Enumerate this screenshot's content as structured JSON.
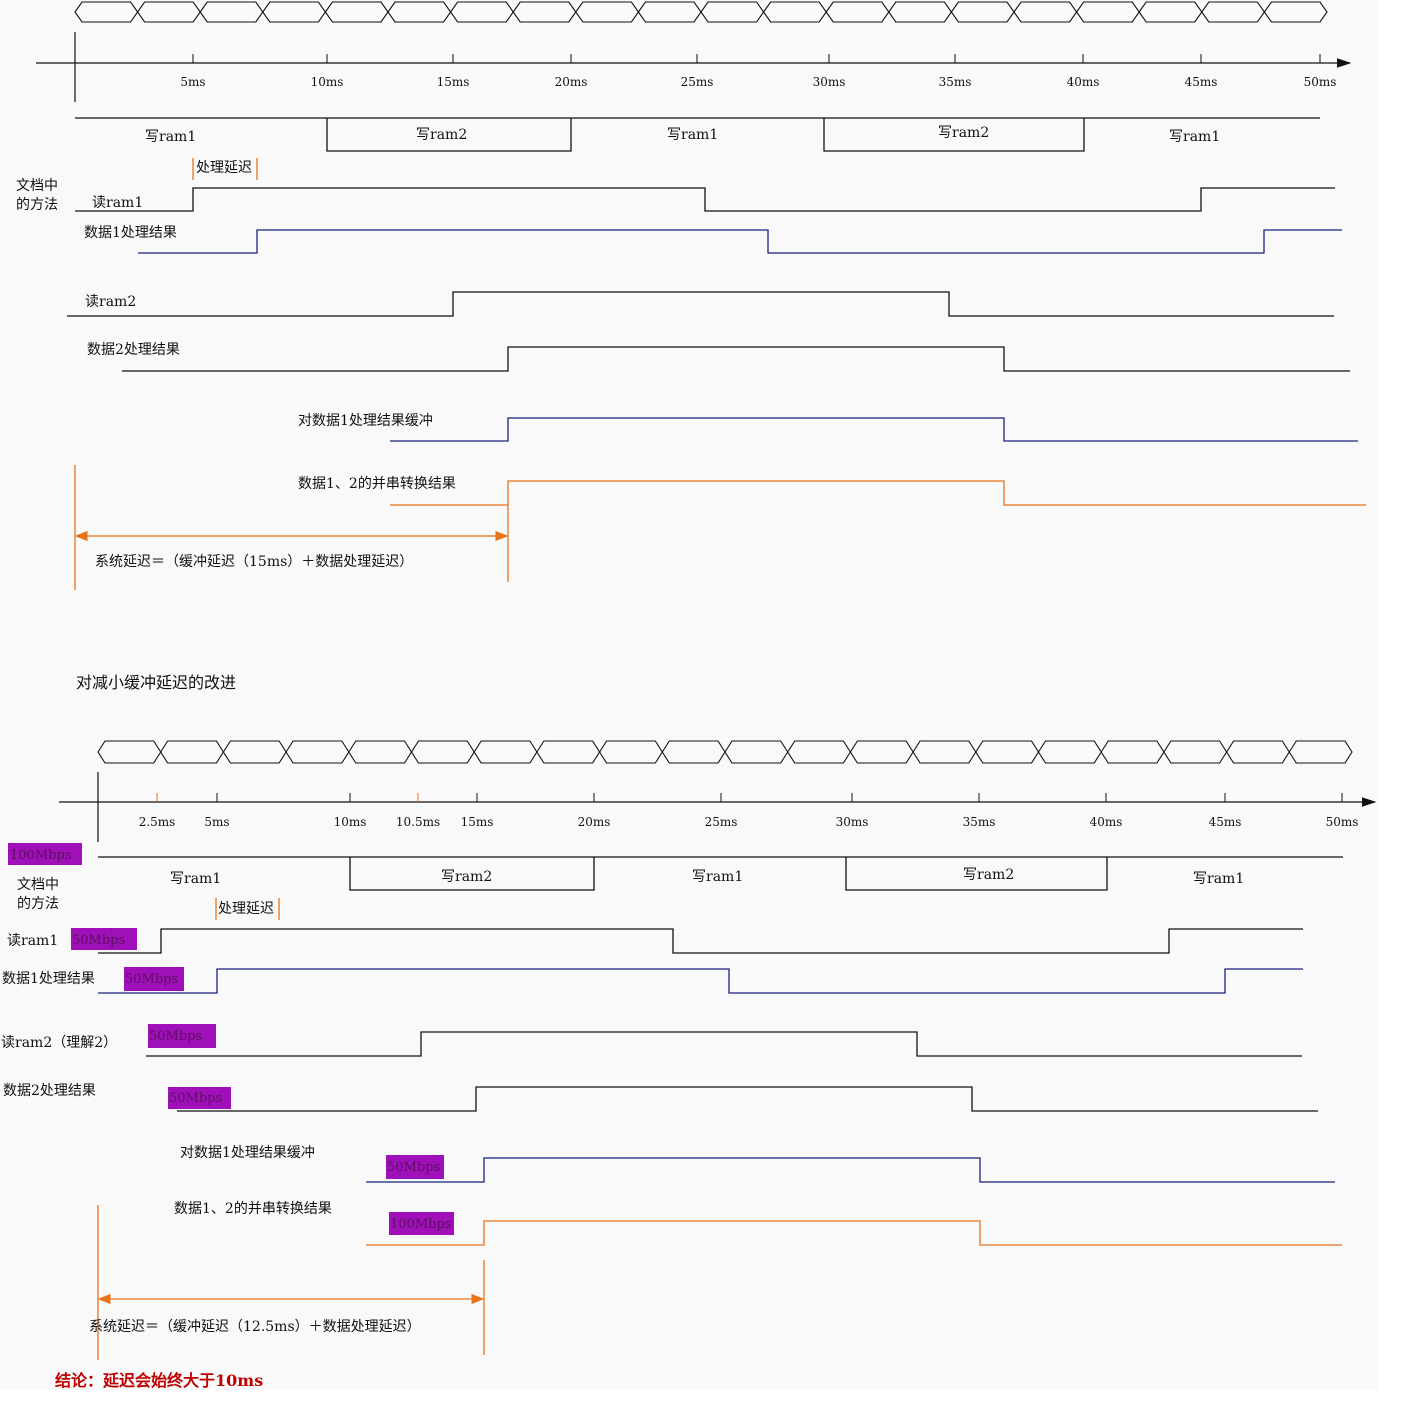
{
  "top": {
    "ticks": [
      "5ms",
      "10ms",
      "15ms",
      "20ms",
      "25ms",
      "30ms",
      "35ms",
      "40ms",
      "45ms",
      "50ms"
    ],
    "write_labels": [
      "写ram1",
      "写ram2",
      "写ram1",
      "写ram2",
      "写ram1"
    ],
    "method_label_1": "文档中",
    "method_label_2": "的方法",
    "proc_delay": "处理延迟",
    "signals": [
      "读ram1",
      "数据1处理结果",
      "读ram2",
      "数据2处理结果",
      "对数据1处理结果缓冲",
      "数据1、2的并串转换结果"
    ],
    "system_delay": "系统延迟＝（缓冲延迟（15ms）＋数据处理延迟）"
  },
  "section_title": "对减小缓冲延迟的改进",
  "bottom": {
    "ticks": [
      "2.5ms",
      "5ms",
      "10ms",
      "10.5ms",
      "15ms",
      "20ms",
      "25ms",
      "30ms",
      "35ms",
      "40ms",
      "45ms",
      "50ms"
    ],
    "write_labels": [
      "写ram1",
      "写ram2",
      "写ram1",
      "写ram2",
      "写ram1"
    ],
    "method_label_1": "文档中",
    "method_label_2": "的方法",
    "proc_delay": "处理延迟",
    "signals": [
      "读ram1",
      "数据1处理结果",
      "读ram2（理解2）",
      "数据2处理结果",
      "对数据1处理结果缓冲",
      "数据1、2的并串转换结果"
    ],
    "rates": [
      "100Mbps",
      "50Mbps",
      "50Mbps",
      "50Mbps",
      "50Mbps",
      "50Mbps",
      "100Mbps"
    ],
    "system_delay": "系统延迟＝（缓冲延迟（12.5ms）＋数据处理延迟）"
  },
  "conclusion": "结论：延迟会始终大于10ms",
  "colors": {
    "background": "#f9f9f9",
    "signal": "#111111",
    "blue_signal": "#1a237e",
    "orange_signal": "#e8731a",
    "rate_badge": "#a010b8",
    "conclusion": "#c00000"
  }
}
